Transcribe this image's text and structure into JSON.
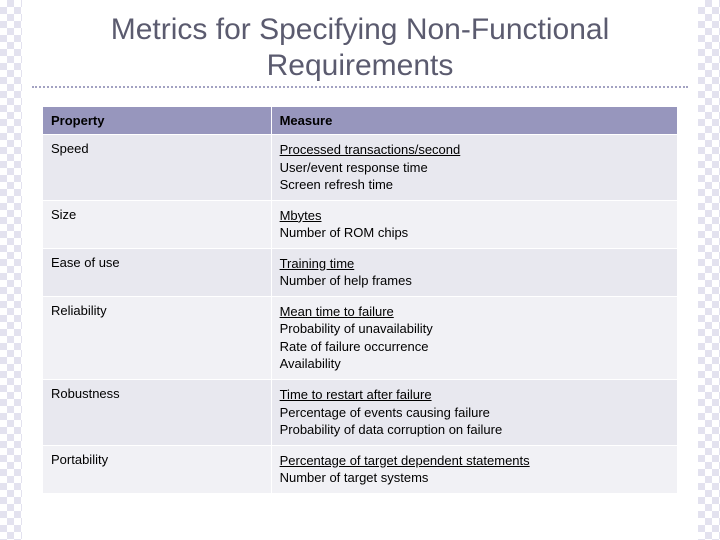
{
  "title": "Metrics for Specifying Non-Functional Requirements",
  "colors": {
    "header_bg": "#9796bd",
    "band0": "#e8e8ef",
    "band1": "#f1f1f5",
    "title_color": "#5b5b6f",
    "dotted": "#a3a2c2",
    "checker": "#e3e2ef"
  },
  "columns": [
    "Property",
    "Measure"
  ],
  "rows": [
    {
      "property": "Speed",
      "measures": [
        {
          "text": "Processed transactions/second",
          "underlined": true
        },
        {
          "text": "User/event response time",
          "underlined": false
        },
        {
          "text": "Screen refresh time",
          "underlined": false
        }
      ]
    },
    {
      "property": "Size",
      "measures": [
        {
          "text": "Mbytes",
          "underlined": true
        },
        {
          "text": "Number of ROM chips",
          "underlined": false
        }
      ]
    },
    {
      "property": "Ease of use",
      "measures": [
        {
          "text": "Training time",
          "underlined": true
        },
        {
          "text": "Number of help frames",
          "underlined": false
        }
      ]
    },
    {
      "property": "Reliability",
      "measures": [
        {
          "text": "Mean time to failure",
          "underlined": true
        },
        {
          "text": "Probability of unavailability",
          "underlined": false
        },
        {
          "text": "Rate of failure occurrence",
          "underlined": false
        },
        {
          "text": "Availability",
          "underlined": false
        }
      ]
    },
    {
      "property": "Robustness",
      "measures": [
        {
          "text": "Time to restart after failure",
          "underlined": true
        },
        {
          "text": "Percentage of events causing failure",
          "underlined": false
        },
        {
          "text": "Probability of data corruption on failure",
          "underlined": false
        }
      ]
    },
    {
      "property": "Portability",
      "measures": [
        {
          "text": "Percentage of target dependent statements",
          "underlined": true
        },
        {
          "text": "Number of target systems",
          "underlined": false
        }
      ]
    }
  ]
}
